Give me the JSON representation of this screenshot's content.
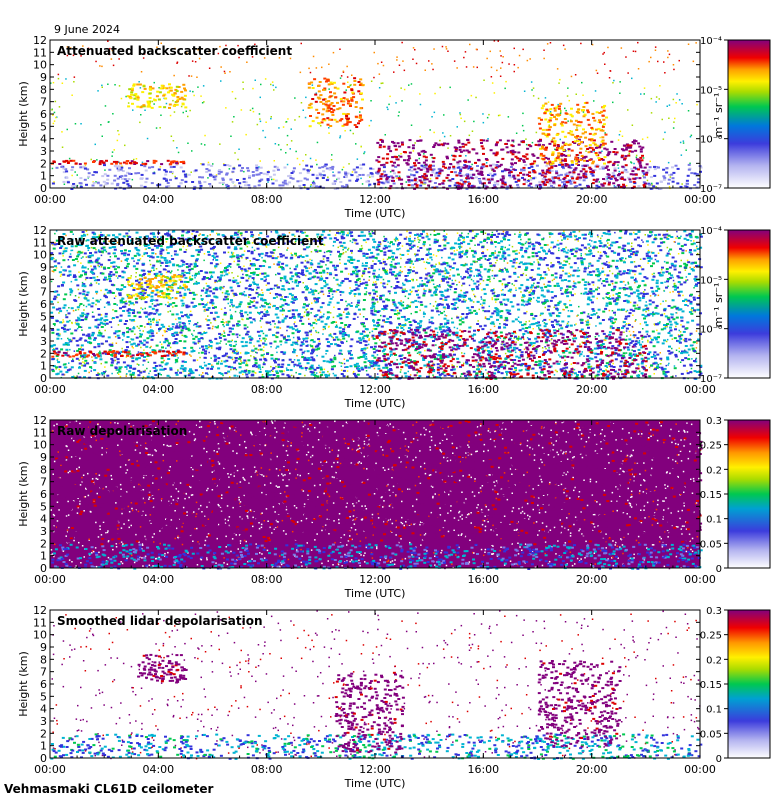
{
  "date": "9 June 2024",
  "footer": "Vehmasmaki CL61D ceilometer",
  "colors": {
    "palette": [
      "#ffffff",
      "#c8c8f0",
      "#7878e6",
      "#3232dc",
      "#00b4d2",
      "#00c850",
      "#aadc00",
      "#fff000",
      "#ffa000",
      "#ff3c00",
      "#dc0000",
      "#82007d"
    ]
  },
  "chart_data": [
    {
      "type": "heatmap",
      "id": "p1",
      "title": "Attenuated backscatter coefficient",
      "xlabel": "Time (UTC)",
      "ylabel": "Height (km)",
      "x_ticks": [
        "00:00",
        "04:00",
        "08:00",
        "12:00",
        "16:00",
        "20:00",
        "00:00"
      ],
      "xlim_hours": [
        0,
        24
      ],
      "ylim_km": [
        0,
        12
      ],
      "y_ticks": [
        0,
        1,
        2,
        3,
        4,
        5,
        6,
        7,
        8,
        9,
        10,
        11,
        12
      ],
      "colorbar": {
        "scale": "log",
        "range": [
          1e-07,
          0.0001
        ],
        "unit": "m⁻¹ sr⁻¹",
        "tick_labels": [
          "10⁻⁴",
          "10⁻⁵",
          "10⁻⁶",
          "10⁻⁷"
        ]
      },
      "features": [
        {
          "name": "boundary layer aerosol",
          "t": [
            0,
            24
          ],
          "h": [
            0,
            2
          ],
          "level": 0.2
        },
        {
          "name": "residual layer",
          "t": [
            0,
            5
          ],
          "h": [
            2,
            2.3
          ],
          "level": 0.85
        },
        {
          "name": "aerosol layer 04:00",
          "t": [
            2.8,
            5
          ],
          "h": [
            6.5,
            8.5
          ],
          "level": 0.65
        },
        {
          "name": "aerosol layer 10:00",
          "t": [
            9.5,
            11.5
          ],
          "h": [
            5,
            9
          ],
          "level": 0.75
        },
        {
          "name": "clouds 12:00-22:00",
          "t": [
            12,
            22
          ],
          "h": [
            0,
            4
          ],
          "level": 0.95
        },
        {
          "name": "clouds 18:00-20:00",
          "t": [
            18,
            20.5
          ],
          "h": [
            2,
            7
          ],
          "level": 0.7
        }
      ]
    },
    {
      "type": "heatmap",
      "id": "p2",
      "title": "Raw attenuated backscatter coefficient",
      "xlabel": "Time (UTC)",
      "ylabel": "Height (km)",
      "x_ticks": [
        "00:00",
        "04:00",
        "08:00",
        "12:00",
        "16:00",
        "20:00",
        "00:00"
      ],
      "xlim_hours": [
        0,
        24
      ],
      "ylim_km": [
        0,
        12
      ],
      "y_ticks": [
        0,
        1,
        2,
        3,
        4,
        5,
        6,
        7,
        8,
        9,
        10,
        11,
        12
      ],
      "colorbar": {
        "scale": "log",
        "range": [
          1e-07,
          0.0001
        ],
        "unit": "m⁻¹ sr⁻¹",
        "tick_labels": [
          "10⁻⁴",
          "10⁻⁵",
          "10⁻⁶",
          "10⁻⁷"
        ]
      },
      "features": [
        {
          "name": "noise background",
          "t": [
            0,
            24
          ],
          "h": [
            0,
            12
          ],
          "level": 0.35
        },
        {
          "name": "residual layer",
          "t": [
            0,
            5
          ],
          "h": [
            1.8,
            2.3
          ],
          "level": 0.85
        },
        {
          "name": "aerosol layer 04:00",
          "t": [
            2.8,
            5
          ],
          "h": [
            6.5,
            8.5
          ],
          "level": 0.65
        },
        {
          "name": "clouds 12:00-22:00",
          "t": [
            12,
            22
          ],
          "h": [
            0,
            4
          ],
          "level": 0.95
        }
      ]
    },
    {
      "type": "heatmap",
      "id": "p3",
      "title": "Raw depolarisation",
      "xlabel": "Time (UTC)",
      "ylabel": "Height (km)",
      "x_ticks": [
        "00:00",
        "04:00",
        "08:00",
        "12:00",
        "16:00",
        "20:00",
        "00:00"
      ],
      "xlim_hours": [
        0,
        24
      ],
      "ylim_km": [
        0,
        12
      ],
      "y_ticks": [
        0,
        1,
        2,
        3,
        4,
        5,
        6,
        7,
        8,
        9,
        10,
        11,
        12
      ],
      "colorbar": {
        "scale": "linear",
        "range": [
          0,
          0.3
        ],
        "unit": "",
        "tick_labels": [
          "0.3",
          "0.25",
          "0.2",
          "0.15",
          "0.1",
          "0.05",
          "0"
        ]
      },
      "features": [
        {
          "name": "noise background",
          "t": [
            0,
            24
          ],
          "h": [
            2,
            12
          ],
          "level": 1.0
        },
        {
          "name": "boundary layer",
          "t": [
            0,
            24
          ],
          "h": [
            0,
            2
          ],
          "level": 0.3
        }
      ]
    },
    {
      "type": "heatmap",
      "id": "p4",
      "title": "Smoothed lidar depolarisation",
      "xlabel": "Time (UTC)",
      "ylabel": "Height (km)",
      "x_ticks": [
        "00:00",
        "04:00",
        "08:00",
        "12:00",
        "16:00",
        "20:00",
        "00:00"
      ],
      "xlim_hours": [
        0,
        24
      ],
      "ylim_km": [
        0,
        12
      ],
      "y_ticks": [
        0,
        1,
        2,
        3,
        4,
        5,
        6,
        7,
        8,
        9,
        10,
        11,
        12
      ],
      "colorbar": {
        "scale": "linear",
        "range": [
          0,
          0.3
        ],
        "unit": "",
        "tick_labels": [
          "0.3",
          "0.25",
          "0.2",
          "0.15",
          "0.1",
          "0.05",
          "0"
        ]
      },
      "features": [
        {
          "name": "boundary layer",
          "t": [
            0,
            24
          ],
          "h": [
            0,
            2
          ],
          "level": 0.35
        },
        {
          "name": "aerosol layer 04:00",
          "t": [
            3.2,
            5
          ],
          "h": [
            6.2,
            8.5
          ],
          "level": 1.0
        },
        {
          "name": "depolarising layer 11:00-13:00",
          "t": [
            10.5,
            13
          ],
          "h": [
            0.5,
            7
          ],
          "level": 1.0
        },
        {
          "name": "depolarising layer 18:00-21:00",
          "t": [
            18,
            21
          ],
          "h": [
            1,
            8
          ],
          "level": 1.0
        }
      ]
    }
  ]
}
